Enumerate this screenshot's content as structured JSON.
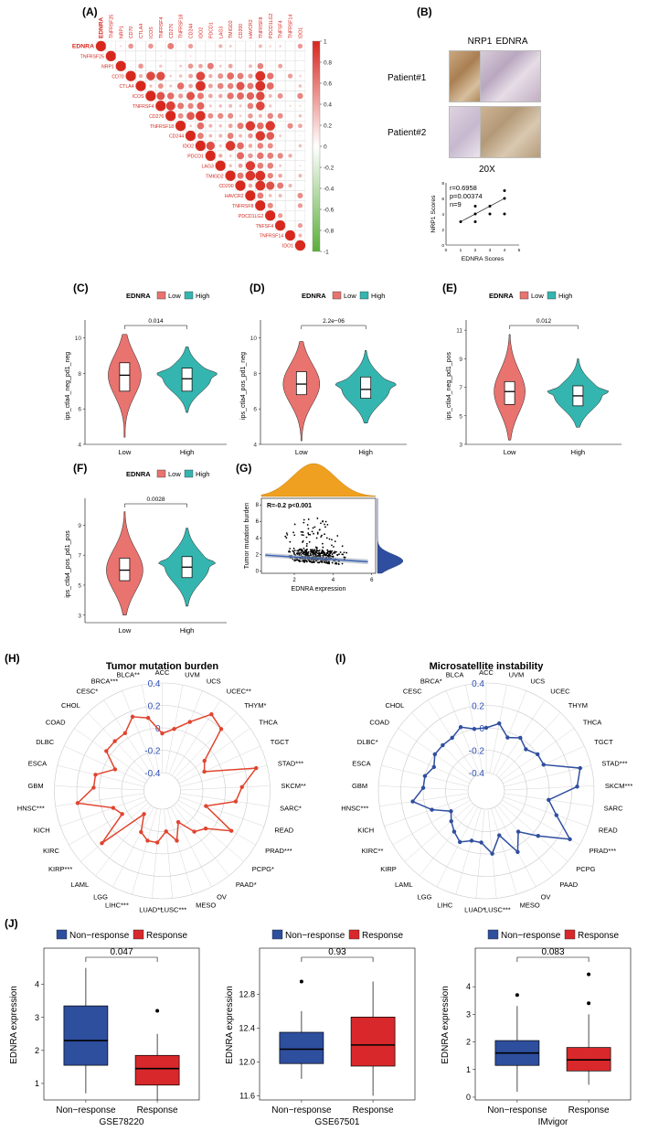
{
  "panels": {
    "A": "(A)",
    "B": "(B)",
    "C": "(C)",
    "D": "(D)",
    "E": "(E)",
    "F": "(F)",
    "G": "(G)",
    "H": "(H)",
    "I": "(I)",
    "J": "(J)"
  },
  "colors": {
    "low": "#E8736F",
    "high": "#35B5AF",
    "red": "#D7261E",
    "green": "#5AAE3A",
    "blue": "#2F4E9F",
    "tmb_red": "#E0442E",
    "nonresp": "#2E4E9E",
    "resp": "#D8282B",
    "orange": "#F0A020"
  },
  "chart_data": [
    {
      "id": "A",
      "type": "heatmap",
      "row_labels": [
        "EDNRA",
        "TNFRSF25",
        "NRP1",
        "CD70",
        "CTLA4",
        "ICOS",
        "TNFRSF4",
        "CD276",
        "TNFRSF18",
        "CD244",
        "IDO2",
        "PDCD1",
        "LAG3",
        "TMIGD2",
        "CD200",
        "HAVCR2",
        "TNFRSF8",
        "PDCD1LG2",
        "TNFSF4",
        "TNFRSF14",
        "IDO1"
      ],
      "col_labels": [
        "EDNRA",
        "TNFRSF25",
        "NRP1",
        "CD70",
        "CTLA4",
        "ICOS",
        "TNFRSF4",
        "CD276",
        "TNFRSF18",
        "CD244",
        "IDO2",
        "PDCD1",
        "LAG3",
        "TMIGD2",
        "CD200",
        "HAVCR2",
        "TNFRSF8",
        "PDCD1LG2",
        "TNFSF4",
        "TNFRSF14",
        "IDO1"
      ],
      "colorbar_ticks": [
        "1",
        "0.8",
        "0.6",
        "0.4",
        "0.2",
        "0",
        "-0.2",
        "-0.4",
        "-0.6",
        "-0.8",
        "-1"
      ]
    },
    {
      "id": "B",
      "type": "scatter",
      "headers": [
        "NRP1",
        "EDNRA"
      ],
      "rows": [
        "Patient#1",
        "Patient#2"
      ],
      "magnification": "20X",
      "stats": [
        "r=0.6958",
        "p=0.00374",
        "n=9"
      ],
      "xlabel": "EDNRA Scores",
      "ylabel": "NRP1 Scores",
      "xticks": [
        "0",
        "1",
        "2",
        "3",
        "4",
        "5"
      ],
      "yticks": [
        "0",
        "2",
        "4",
        "6",
        "8"
      ],
      "x": [
        1,
        2,
        2,
        2,
        3,
        3,
        4,
        4,
        4
      ],
      "y": [
        3,
        3,
        4,
        5,
        4,
        5,
        7,
        6,
        4
      ],
      "xlim": [
        0,
        5
      ],
      "ylim": [
        0,
        8
      ]
    },
    {
      "id": "C",
      "type": "violin",
      "legend_title": "EDNRA",
      "legend": [
        "Low",
        "High"
      ],
      "ylabel": "ips_ctla4_neg_pd1_neg",
      "categories": [
        "Low",
        "High"
      ],
      "yticks": [
        "4",
        "6",
        "8",
        "10"
      ],
      "ylim": [
        4,
        10.6
      ],
      "pvalue": "0.014",
      "medians": [
        7.9,
        7.7
      ],
      "q1": [
        7.0,
        7.0
      ],
      "q3": [
        8.6,
        8.3
      ],
      "min": [
        4.4,
        5.8
      ],
      "max": [
        10.2,
        9.5
      ]
    },
    {
      "id": "D",
      "type": "violin",
      "legend_title": "EDNRA",
      "legend": [
        "Low",
        "High"
      ],
      "ylabel": "ips_ctla4_pos_pd1_neg",
      "categories": [
        "Low",
        "High"
      ],
      "yticks": [
        "4",
        "6",
        "8",
        "10"
      ],
      "ylim": [
        4,
        10.6
      ],
      "pvalue": "2.2e−06",
      "medians": [
        7.4,
        7.1
      ],
      "q1": [
        6.8,
        6.6
      ],
      "q3": [
        8.1,
        7.8
      ],
      "min": [
        4.2,
        5.2
      ],
      "max": [
        9.8,
        9.3
      ]
    },
    {
      "id": "E",
      "type": "violin",
      "legend_title": "EDNRA",
      "legend": [
        "Low",
        "High"
      ],
      "ylabel": "ips_ctla4_neg_pd1_pos",
      "categories": [
        "Low",
        "High"
      ],
      "yticks": [
        "3",
        "5",
        "7",
        "9",
        "11"
      ],
      "ylim": [
        3,
        11.2
      ],
      "pvalue": "0.012",
      "medians": [
        6.7,
        6.4
      ],
      "q1": [
        5.8,
        5.7
      ],
      "q3": [
        7.4,
        7.1
      ],
      "min": [
        3.3,
        4.2
      ],
      "max": [
        10.7,
        9.0
      ]
    },
    {
      "id": "F",
      "type": "violin",
      "legend_title": "EDNRA",
      "legend": [
        "Low",
        "High"
      ],
      "ylabel": "ips_ctla4_pos_pd1_pos",
      "categories": [
        "Low",
        "High"
      ],
      "yticks": [
        "3",
        "5",
        "7",
        "9"
      ],
      "ylim": [
        2.5,
        10.3
      ],
      "pvalue": "0.0028",
      "medians": [
        6.0,
        6.2
      ],
      "q1": [
        5.3,
        5.5
      ],
      "q3": [
        6.8,
        6.9
      ],
      "min": [
        3.0,
        3.6
      ],
      "max": [
        9.9,
        8.8
      ]
    },
    {
      "id": "G",
      "type": "scatter",
      "annotation": "R=-0.2 p<0.001",
      "xlabel": "EDNRA expression",
      "ylabel": "Tumor mutation burden",
      "xticks": [
        "2",
        "4",
        "6"
      ],
      "yticks": [
        "0",
        "2",
        "4",
        "6",
        "8"
      ],
      "xlim": [
        0.3,
        6.2
      ],
      "ylim": [
        -0.3,
        8.8
      ],
      "fit": {
        "x": [
          0.5,
          5.8
        ],
        "y": [
          1.9,
          1.1
        ]
      }
    },
    {
      "id": "H",
      "type": "radar",
      "title": "Tumor mutation burden",
      "categories": [
        "ACC",
        "UVM",
        "UCS",
        "UCEC**",
        "THYM*",
        "THCA",
        "TGCT",
        "STAD***",
        "SKCM**",
        "SARC*",
        "READ",
        "PRAD***",
        "PCPG*",
        "PAAD*",
        "OV",
        "MESO",
        "LUSC***",
        "LUAD**",
        "LIHC***",
        "LGG",
        "LAML",
        "KIRP***",
        "KIRC",
        "KICH",
        "HNSC***",
        "GBM",
        "ESCA",
        "DLBC",
        "COAD",
        "CHOL",
        "CESC*",
        "BRCA***",
        "BLCA**"
      ],
      "values": [
        -0.05,
        0.0,
        0.1,
        0.25,
        0.2,
        -0.1,
        -0.15,
        0.3,
        0.15,
        0.1,
        -0.15,
        0.15,
        -0.05,
        -0.1,
        -0.25,
        -0.1,
        -0.2,
        -0.1,
        -0.1,
        -0.15,
        -0.3,
        0.15,
        -0.15,
        -0.1,
        0.2,
        0.05,
        0.05,
        -0.1,
        0.05,
        0.05,
        0.05,
        0.15,
        0.1
      ],
      "rticks": [
        "0.4",
        "0.2",
        "0",
        "-0.2",
        "-0.4"
      ],
      "rlim": [
        -0.4,
        0.4
      ]
    },
    {
      "id": "I",
      "type": "radar",
      "title": "Microsatellite instability",
      "categories": [
        "ACC",
        "UVM",
        "UCS",
        "UCEC",
        "THYM",
        "THCA",
        "TGCT",
        "STAD***",
        "SKCM***",
        "SARC",
        "READ",
        "PRAD***",
        "PCPG",
        "PAAD",
        "OV",
        "MESO",
        "LUSC***",
        "LUAD*",
        "LIHC",
        "LGG",
        "LAML",
        "KIRP",
        "KIRC**",
        "KICH",
        "HNSC***",
        "GBM",
        "ESCA",
        "DLBC*",
        "COAD",
        "CHOL",
        "CESC",
        "BRCA*",
        "BLCA"
      ],
      "values": [
        0.0,
        0.05,
        -0.05,
        0.0,
        -0.05,
        0.0,
        0.0,
        0.3,
        0.25,
        0.0,
        0.1,
        0.3,
        0.05,
        -0.1,
        0.05,
        -0.15,
        0.0,
        -0.1,
        -0.1,
        -0.05,
        -0.1,
        -0.15,
        -0.2,
        -0.05,
        0.1,
        0.0,
        0.0,
        -0.05,
        0.0,
        0.0,
        0.0,
        0.05,
        0.0
      ],
      "rticks": [
        "0.4",
        "0.2",
        "0",
        "-0.2",
        "-0.4"
      ],
      "rlim": [
        -0.4,
        0.4
      ]
    },
    {
      "id": "J1",
      "type": "box",
      "dataset": "GSE78220",
      "legend": [
        "Non−response",
        "Response"
      ],
      "ylabel": "EDNRA expression",
      "categories": [
        "Non−response",
        "Response"
      ],
      "yticks": [
        "1",
        "2",
        "3",
        "4"
      ],
      "ylim": [
        0.5,
        4.6
      ],
      "pvalue": "0.047",
      "min": [
        0.7,
        0.5
      ],
      "q1": [
        1.55,
        0.95
      ],
      "median": [
        2.3,
        1.45
      ],
      "q3": [
        3.35,
        1.85
      ],
      "max": [
        4.5,
        2.5
      ],
      "outliers": [
        [],
        [
          3.2
        ]
      ]
    },
    {
      "id": "J2",
      "type": "box",
      "dataset": "GSE67501",
      "legend": [
        "Non−response",
        "Response"
      ],
      "ylabel": "EDNRA expression",
      "categories": [
        "Non−response",
        "Response"
      ],
      "yticks": [
        "11.6",
        "12.0",
        "12.4",
        "12.8"
      ],
      "ylim": [
        11.55,
        13.15
      ],
      "pvalue": "0.93",
      "min": [
        11.8,
        11.6
      ],
      "q1": [
        11.98,
        11.95
      ],
      "median": [
        12.15,
        12.2
      ],
      "q3": [
        12.35,
        12.53
      ],
      "max": [
        12.6,
        12.95
      ],
      "outliers": [
        [
          12.95
        ],
        []
      ]
    },
    {
      "id": "J3",
      "type": "box",
      "dataset": "IMvigor",
      "legend": [
        "Non−response",
        "Response"
      ],
      "ylabel": "EDNRA expression",
      "categories": [
        "Non−response",
        "Response"
      ],
      "yticks": [
        "0",
        "1",
        "2",
        "3",
        "4"
      ],
      "ylim": [
        -0.1,
        4.8
      ],
      "pvalue": "0.083",
      "min": [
        0.2,
        0.45
      ],
      "q1": [
        1.15,
        0.95
      ],
      "median": [
        1.6,
        1.35
      ],
      "q3": [
        2.05,
        1.8
      ],
      "max": [
        3.3,
        3.0
      ],
      "outliers": [
        [
          3.7
        ],
        [
          3.4,
          4.45
        ]
      ]
    }
  ]
}
